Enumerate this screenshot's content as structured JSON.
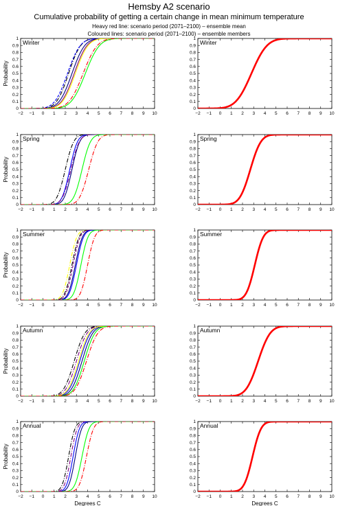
{
  "header": {
    "title": "Hemsby A2 scenario",
    "subtitle": "Cumulative probability of getting a certain change in mean minimum temperature",
    "legend_line1": "Heavy red line: scenario period (2071–2100) – ensemble mean",
    "legend_line2": "Coloured lines: scenario period (2071–2100) – ensemble members"
  },
  "chart_data": [
    {
      "type": "line",
      "season": "Winter",
      "panel": "ensemble-members",
      "xlabel": "",
      "ylabel": "Probability",
      "xlim": [
        -2,
        10
      ],
      "ylim": [
        0,
        1
      ],
      "x_ticks": [
        "−2",
        "−1",
        "0",
        "1",
        "2",
        "3",
        "4",
        "5",
        "6",
        "7",
        "8",
        "9",
        "10"
      ],
      "y_ticks": [
        "0",
        "0.1",
        "0.2",
        "0.3",
        "0.4",
        "0.5",
        "0.6",
        "0.7",
        "0.8",
        "0.9",
        "1"
      ],
      "series": [
        {
          "color": "#000080",
          "dash": "none",
          "median": 2.6,
          "spread": 0.9
        },
        {
          "color": "#000000",
          "dash": "6,2,1,2",
          "median": 2.3,
          "spread": 0.85
        },
        {
          "color": "#0000ff",
          "dash": "4,2",
          "median": 2.2,
          "spread": 0.9
        },
        {
          "color": "#800080",
          "dash": "none",
          "median": 2.8,
          "spread": 0.9
        },
        {
          "color": "#ffff00",
          "dash": "none",
          "median": 2.9,
          "spread": 0.9
        },
        {
          "color": "#00ff00",
          "dash": "none",
          "median": 3.8,
          "spread": 1.0
        },
        {
          "color": "#ff0000",
          "dash": "6,2,1,2",
          "median": 3.6,
          "spread": 1.0
        }
      ]
    },
    {
      "type": "line",
      "season": "Winter",
      "panel": "ensemble-mean",
      "xlabel": "",
      "ylabel": "",
      "xlim": [
        -2,
        10
      ],
      "ylim": [
        0,
        1
      ],
      "x_ticks": [
        "−2",
        "−1",
        "0",
        "1",
        "2",
        "3",
        "4",
        "5",
        "6",
        "7",
        "8",
        "9",
        "10"
      ],
      "y_ticks": [
        "0",
        "0.1",
        "0.2",
        "0.3",
        "0.4",
        "0.5",
        "0.6",
        "0.7",
        "0.8",
        "0.9",
        "1"
      ],
      "series": [
        {
          "color": "#ff0000",
          "heavy": true,
          "median": 2.8,
          "spread": 1.1
        }
      ]
    },
    {
      "type": "line",
      "season": "Spring",
      "panel": "ensemble-members",
      "xlabel": "",
      "ylabel": "Probability",
      "xlim": [
        -2,
        10
      ],
      "ylim": [
        0,
        1
      ],
      "x_ticks": [
        "−2",
        "−1",
        "0",
        "1",
        "2",
        "3",
        "4",
        "5",
        "6",
        "7",
        "8",
        "9",
        "10"
      ],
      "y_ticks": [
        "0",
        "0.1",
        "0.2",
        "0.3",
        "0.4",
        "0.5",
        "0.6",
        "0.7",
        "0.8",
        "0.9",
        "1"
      ],
      "series": [
        {
          "color": "#000000",
          "dash": "6,2,1,2",
          "median": 2.0,
          "spread": 0.6
        },
        {
          "color": "#0000ff",
          "dash": "none",
          "median": 2.4,
          "spread": 0.55
        },
        {
          "color": "#000080",
          "dash": "none",
          "median": 2.6,
          "spread": 0.55
        },
        {
          "color": "#800080",
          "dash": "6,2,1,2",
          "median": 2.5,
          "spread": 0.6
        },
        {
          "color": "#00ff00",
          "dash": "none",
          "median": 3.5,
          "spread": 0.6
        },
        {
          "color": "#ff0000",
          "dash": "6,2,1,2",
          "median": 4.1,
          "spread": 0.65
        }
      ]
    },
    {
      "type": "line",
      "season": "Spring",
      "panel": "ensemble-mean",
      "xlabel": "",
      "ylabel": "",
      "xlim": [
        -2,
        10
      ],
      "ylim": [
        0,
        1
      ],
      "x_ticks": [
        "−2",
        "−1",
        "0",
        "1",
        "2",
        "3",
        "4",
        "5",
        "6",
        "7",
        "8",
        "9",
        "10"
      ],
      "y_ticks": [
        "0",
        "0.1",
        "0.2",
        "0.3",
        "0.4",
        "0.5",
        "0.6",
        "0.7",
        "0.8",
        "0.9",
        "1"
      ],
      "series": [
        {
          "color": "#ff0000",
          "heavy": true,
          "median": 2.7,
          "spread": 0.75
        }
      ]
    },
    {
      "type": "line",
      "season": "Summer",
      "panel": "ensemble-members",
      "xlabel": "",
      "ylabel": "Probability",
      "xlim": [
        -2,
        10
      ],
      "ylim": [
        0,
        1
      ],
      "x_ticks": [
        "−2",
        "−1",
        "0",
        "1",
        "2",
        "3",
        "4",
        "5",
        "6",
        "7",
        "8",
        "9",
        "10"
      ],
      "y_ticks": [
        "0",
        "0.1",
        "0.2",
        "0.3",
        "0.4",
        "0.5",
        "0.6",
        "0.7",
        "0.8",
        "0.9",
        "1"
      ],
      "series": [
        {
          "color": "#ffff00",
          "dash": "6,2,1,2",
          "median": 2.4,
          "spread": 0.5
        },
        {
          "color": "#000000",
          "dash": "6,2,1,2",
          "median": 2.6,
          "spread": 0.5
        },
        {
          "color": "#000080",
          "dash": "none",
          "median": 2.9,
          "spread": 0.5
        },
        {
          "color": "#800080",
          "dash": "4,2",
          "median": 2.7,
          "spread": 0.5
        },
        {
          "color": "#0000ff",
          "dash": "none",
          "median": 3.0,
          "spread": 0.5
        },
        {
          "color": "#00ff00",
          "dash": "none",
          "median": 3.4,
          "spread": 0.5
        },
        {
          "color": "#ff0000",
          "dash": "6,2,1,2",
          "median": 4.0,
          "spread": 0.5
        }
      ]
    },
    {
      "type": "line",
      "season": "Summer",
      "panel": "ensemble-mean",
      "xlabel": "",
      "ylabel": "",
      "xlim": [
        -2,
        10
      ],
      "ylim": [
        0,
        1
      ],
      "x_ticks": [
        "−2",
        "−1",
        "0",
        "1",
        "2",
        "3",
        "4",
        "5",
        "6",
        "7",
        "8",
        "9",
        "10"
      ],
      "y_ticks": [
        "0",
        "0.1",
        "0.2",
        "0.3",
        "0.4",
        "0.5",
        "0.6",
        "0.7",
        "0.8",
        "0.9",
        "1"
      ],
      "series": [
        {
          "color": "#ff0000",
          "heavy": true,
          "median": 3.1,
          "spread": 0.6
        }
      ]
    },
    {
      "type": "line",
      "season": "Autumn",
      "panel": "ensemble-members",
      "xlabel": "",
      "ylabel": "Probability",
      "xlim": [
        -2,
        10
      ],
      "ylim": [
        0,
        1
      ],
      "x_ticks": [
        "−2",
        "−1",
        "0",
        "1",
        "2",
        "3",
        "4",
        "5",
        "6",
        "7",
        "8",
        "9",
        "10"
      ],
      "y_ticks": [
        "0",
        "0.1",
        "0.2",
        "0.3",
        "0.4",
        "0.5",
        "0.6",
        "0.7",
        "0.8",
        "0.9",
        "1"
      ],
      "series": [
        {
          "color": "#000000",
          "dash": "6,2,1,2",
          "median": 2.8,
          "spread": 0.75
        },
        {
          "color": "#800080",
          "dash": "6,2,1,2",
          "median": 3.0,
          "spread": 0.75
        },
        {
          "color": "#0000ff",
          "dash": "none",
          "median": 3.3,
          "spread": 0.75
        },
        {
          "color": "#000080",
          "dash": "none",
          "median": 3.5,
          "spread": 0.75
        },
        {
          "color": "#ffff00",
          "dash": "none",
          "median": 3.2,
          "spread": 0.75
        },
        {
          "color": "#00ff00",
          "dash": "none",
          "median": 3.7,
          "spread": 0.75
        },
        {
          "color": "#ff0000",
          "dash": "6,2,1,2",
          "median": 3.9,
          "spread": 0.8
        }
      ]
    },
    {
      "type": "line",
      "season": "Autumn",
      "panel": "ensemble-mean",
      "xlabel": "",
      "ylabel": "",
      "xlim": [
        -2,
        10
      ],
      "ylim": [
        0,
        1
      ],
      "x_ticks": [
        "−2",
        "−1",
        "0",
        "1",
        "2",
        "3",
        "4",
        "5",
        "6",
        "7",
        "8",
        "9",
        "10"
      ],
      "y_ticks": [
        "0",
        "0.1",
        "0.2",
        "0.3",
        "0.4",
        "0.5",
        "0.6",
        "0.7",
        "0.8",
        "0.9",
        "1"
      ],
      "series": [
        {
          "color": "#ff0000",
          "heavy": true,
          "median": 3.4,
          "spread": 0.85
        }
      ]
    },
    {
      "type": "line",
      "season": "Annual",
      "panel": "ensemble-members",
      "xlabel": "Degrees C",
      "ylabel": "Probability",
      "xlim": [
        -2,
        10
      ],
      "ylim": [
        0,
        1
      ],
      "x_ticks": [
        "−2",
        "−1",
        "0",
        "1",
        "2",
        "3",
        "4",
        "5",
        "6",
        "7",
        "8",
        "9",
        "10"
      ],
      "y_ticks": [
        "0",
        "0.1",
        "0.2",
        "0.3",
        "0.4",
        "0.5",
        "0.6",
        "0.7",
        "0.8",
        "0.9",
        "1"
      ],
      "series": [
        {
          "color": "#000000",
          "dash": "6,2,1,2",
          "median": 2.3,
          "spread": 0.45
        },
        {
          "color": "#800080",
          "dash": "6,2,1,2",
          "median": 2.5,
          "spread": 0.45
        },
        {
          "color": "#0000ff",
          "dash": "none",
          "median": 2.7,
          "spread": 0.45
        },
        {
          "color": "#000080",
          "dash": "none",
          "median": 2.9,
          "spread": 0.45
        },
        {
          "color": "#00ff00",
          "dash": "none",
          "median": 3.5,
          "spread": 0.5
        },
        {
          "color": "#ff0000",
          "dash": "6,2,1,2",
          "median": 3.9,
          "spread": 0.5
        }
      ]
    },
    {
      "type": "line",
      "season": "Annual",
      "panel": "ensemble-mean",
      "xlabel": "Degrees C",
      "ylabel": "",
      "xlim": [
        -2,
        10
      ],
      "ylim": [
        0,
        1
      ],
      "x_ticks": [
        "−2",
        "−1",
        "0",
        "1",
        "2",
        "3",
        "4",
        "5",
        "6",
        "7",
        "8",
        "9",
        "10"
      ],
      "y_ticks": [
        "0",
        "0.1",
        "0.2",
        "0.3",
        "0.4",
        "0.5",
        "0.6",
        "0.7",
        "0.8",
        "0.9",
        "1"
      ],
      "series": [
        {
          "color": "#ff0000",
          "heavy": true,
          "median": 2.9,
          "spread": 0.6
        }
      ]
    }
  ]
}
